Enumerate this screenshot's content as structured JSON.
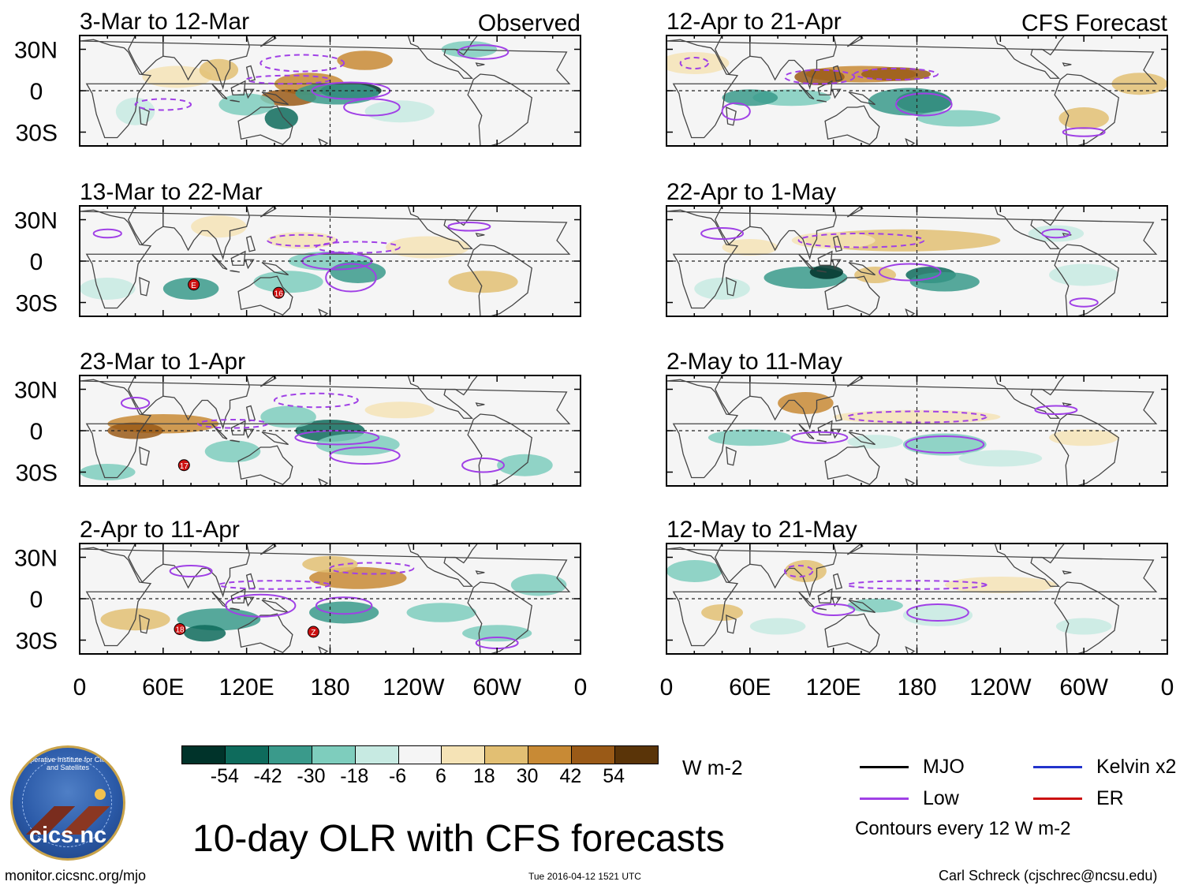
{
  "columns": [
    {
      "header": "Observed"
    },
    {
      "header": "CFS Forecast"
    }
  ],
  "panels": [
    {
      "title": "3-Mar to 12-Mar"
    },
    {
      "title": "12-Apr to 21-Apr"
    },
    {
      "title": "13-Mar to 22-Mar"
    },
    {
      "title": "22-Apr to 1-May"
    },
    {
      "title": "23-Mar to 1-Apr"
    },
    {
      "title": "2-May to 11-May"
    },
    {
      "title": "2-Apr to 11-Apr"
    },
    {
      "title": "12-May to 21-May"
    }
  ],
  "lat_labels": [
    "30N",
    "0",
    "30S"
  ],
  "lon_labels": [
    "0",
    "60E",
    "120E",
    "180",
    "120W",
    "60W",
    "0"
  ],
  "legend": {
    "values": [
      "-54",
      "-42",
      "-30",
      "-18",
      "-6",
      "6",
      "18",
      "30",
      "42",
      "54"
    ],
    "colors": [
      "#00332a",
      "#0e6b5c",
      "#3a9a8b",
      "#7ecdbd",
      "#c7eae2",
      "#f5f5f5",
      "#f5e3b6",
      "#e2bf73",
      "#c88a35",
      "#9a5a17",
      "#5a3408"
    ],
    "units": "W m-2"
  },
  "key": {
    "items": [
      {
        "label": "MJO",
        "color": "#000000"
      },
      {
        "label": "Kelvin x2",
        "color": "#2233cc"
      },
      {
        "label": "Low",
        "color": "#a040e6"
      },
      {
        "label": "ER",
        "color": "#cc1111"
      }
    ],
    "note": "Contours every 12 W m-2"
  },
  "title": "10-day OLR with CFS forecasts",
  "footer": {
    "website": "monitor.cicsnc.org/mjo",
    "timestamp": "Tue 2016-04-12 1521 UTC",
    "author": "Carl Schreck (cjschrec@ncsu.edu)"
  },
  "logo": {
    "text": "cics.nc",
    "org": "Cooperative Institute for Climate and Satellites"
  },
  "storm_markers": [
    {
      "panel": 2,
      "label": "E",
      "lon": 82,
      "lat": -17
    },
    {
      "panel": 2,
      "label": "16",
      "lon": 143,
      "lat": -23
    },
    {
      "panel": 4,
      "label": "17",
      "lon": 75,
      "lat": -25
    },
    {
      "panel": 6,
      "label": "18",
      "lon": 72,
      "lat": -22
    },
    {
      "panel": 6,
      "label": "Z",
      "lon": 168,
      "lat": -24
    }
  ]
}
